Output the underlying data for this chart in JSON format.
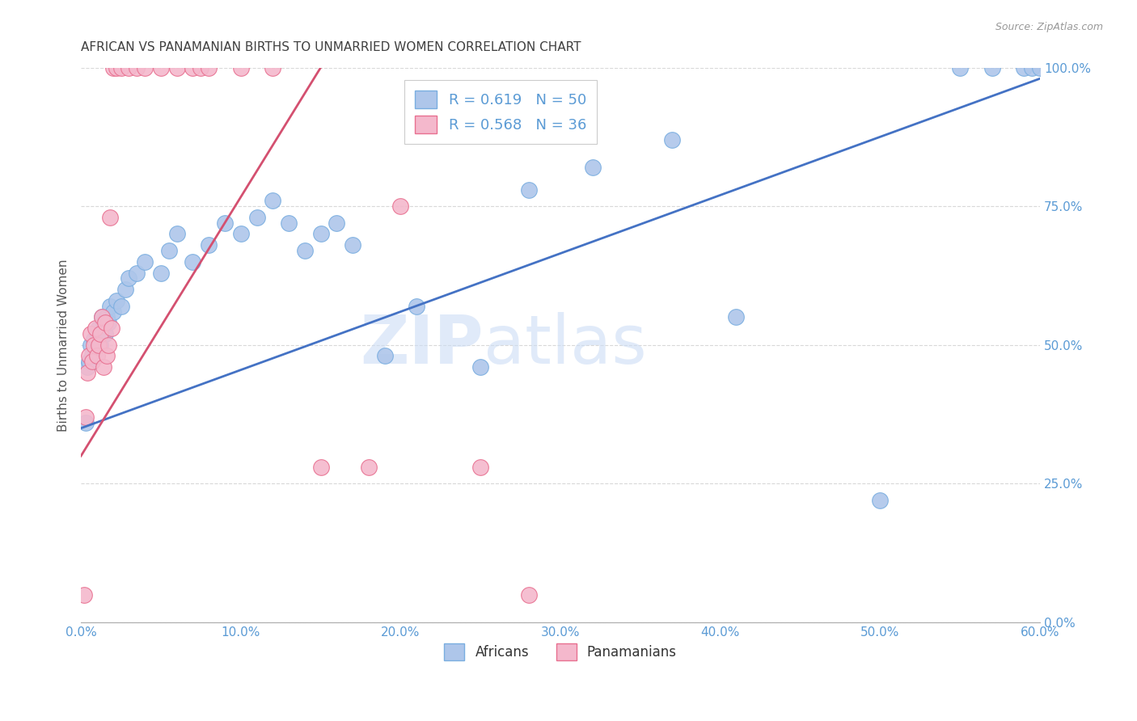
{
  "title": "AFRICAN VS PANAMANIAN BIRTHS TO UNMARRIED WOMEN CORRELATION CHART",
  "source": "Source: ZipAtlas.com",
  "ylabel": "Births to Unmarried Women",
  "xlim": [
    0.0,
    60.0
  ],
  "ylim": [
    0.0,
    100.0
  ],
  "xticks": [
    0.0,
    10.0,
    20.0,
    30.0,
    40.0,
    50.0,
    60.0
  ],
  "yticks": [
    0.0,
    25.0,
    50.0,
    75.0,
    100.0
  ],
  "legend_label1": "R = 0.619   N = 50",
  "legend_label2": "R = 0.568   N = 36",
  "legend_items": [
    "Africans",
    "Panamanians"
  ],
  "watermark_zip": "ZIP",
  "watermark_atlas": "atlas",
  "blue_color": "#aec6ea",
  "pink_color": "#f4b8cc",
  "blue_edge_color": "#7aaee0",
  "pink_edge_color": "#e87090",
  "blue_line_color": "#4472c4",
  "pink_line_color": "#d45070",
  "background_color": "#ffffff",
  "grid_color": "#d8d8d8",
  "title_color": "#404040",
  "axis_tick_color": "#5b9bd5",
  "ylabel_color": "#555555",
  "blue_scatter_x": [
    0.3,
    0.4,
    0.5,
    0.6,
    0.7,
    0.8,
    0.9,
    1.0,
    1.1,
    1.2,
    1.3,
    1.4,
    1.5,
    1.6,
    1.7,
    1.8,
    2.0,
    2.2,
    2.5,
    2.8,
    3.0,
    3.5,
    4.0,
    5.0,
    5.5,
    6.0,
    7.0,
    8.0,
    9.0,
    10.0,
    11.0,
    12.0,
    13.0,
    14.0,
    15.0,
    16.0,
    17.0,
    19.0,
    21.0,
    25.0,
    28.0,
    32.0,
    37.0,
    41.0,
    50.0,
    55.0,
    57.0,
    59.0,
    59.5,
    60.0
  ],
  "blue_scatter_y": [
    36.0,
    46.0,
    47.0,
    50.0,
    48.0,
    51.0,
    49.0,
    52.0,
    53.0,
    50.0,
    55.0,
    54.0,
    52.0,
    55.0,
    54.0,
    57.0,
    56.0,
    58.0,
    57.0,
    60.0,
    62.0,
    63.0,
    65.0,
    63.0,
    67.0,
    70.0,
    65.0,
    68.0,
    72.0,
    70.0,
    73.0,
    76.0,
    72.0,
    67.0,
    70.0,
    72.0,
    68.0,
    48.0,
    57.0,
    46.0,
    78.0,
    82.0,
    87.0,
    55.0,
    22.0,
    100.0,
    100.0,
    100.0,
    100.0,
    100.0
  ],
  "pink_scatter_x": [
    0.2,
    0.3,
    0.4,
    0.5,
    0.6,
    0.7,
    0.8,
    0.9,
    1.0,
    1.1,
    1.2,
    1.3,
    1.4,
    1.5,
    1.6,
    1.7,
    1.8,
    1.9,
    2.0,
    2.2,
    2.5,
    3.0,
    3.5,
    4.0,
    5.0,
    6.0,
    7.0,
    7.5,
    8.0,
    10.0,
    12.0,
    15.0,
    18.0,
    20.0,
    25.0,
    28.0
  ],
  "pink_scatter_y": [
    5.0,
    37.0,
    45.0,
    48.0,
    52.0,
    47.0,
    50.0,
    53.0,
    48.0,
    50.0,
    52.0,
    55.0,
    46.0,
    54.0,
    48.0,
    50.0,
    73.0,
    53.0,
    100.0,
    100.0,
    100.0,
    100.0,
    100.0,
    100.0,
    100.0,
    100.0,
    100.0,
    100.0,
    100.0,
    100.0,
    100.0,
    28.0,
    28.0,
    75.0,
    28.0,
    5.0
  ],
  "blue_trend_x": [
    0.0,
    60.0
  ],
  "blue_trend_y": [
    35.0,
    98.0
  ],
  "pink_trend_x": [
    0.0,
    15.0
  ],
  "pink_trend_y": [
    30.0,
    100.0
  ]
}
